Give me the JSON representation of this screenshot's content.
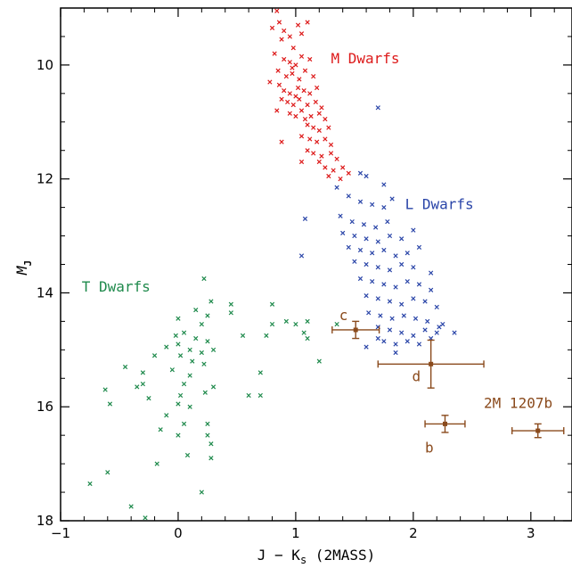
{
  "chart_data": {
    "type": "scatter",
    "xlabel": "J − K_s (2MASS)",
    "xlabel_main": "J − K",
    "xlabel_sub": "s",
    "xlabel_tail": " (2MASS)",
    "ylabel": "M_J",
    "ylabel_main": "M",
    "ylabel_sub": "J",
    "xlim": [
      -1,
      3.35
    ],
    "ylim": [
      18,
      9
    ],
    "y_inverted": true,
    "grid": false,
    "x_ticks": [
      {
        "value": -1,
        "label": "−1"
      },
      {
        "value": 0,
        "label": "0"
      },
      {
        "value": 1,
        "label": "1"
      },
      {
        "value": 2,
        "label": "2"
      },
      {
        "value": 3,
        "label": "3"
      }
    ],
    "y_ticks": [
      {
        "value": 10,
        "label": "10"
      },
      {
        "value": 12,
        "label": "12"
      },
      {
        "value": 14,
        "label": "14"
      },
      {
        "value": 16,
        "label": "16"
      },
      {
        "value": 18,
        "label": "18"
      }
    ],
    "colors": {
      "m": "#dd1a1a",
      "l": "#2a45a8",
      "t": "#1f8a4c",
      "obj": "#8a4a1c"
    },
    "series": [
      {
        "name": "M Dwarfs",
        "label_pos": [
          1.3,
          9.97
        ],
        "points": [
          [
            0.84,
            9.05
          ],
          [
            0.86,
            9.25
          ],
          [
            0.8,
            9.35
          ],
          [
            0.9,
            9.4
          ],
          [
            0.95,
            9.5
          ],
          [
            1.02,
            9.3
          ],
          [
            1.05,
            9.45
          ],
          [
            1.1,
            9.25
          ],
          [
            0.88,
            9.55
          ],
          [
            0.98,
            9.7
          ],
          [
            0.82,
            9.8
          ],
          [
            0.9,
            9.9
          ],
          [
            0.95,
            9.95
          ],
          [
            1.0,
            10.0
          ],
          [
            1.05,
            9.85
          ],
          [
            1.12,
            9.9
          ],
          [
            0.85,
            10.1
          ],
          [
            0.92,
            10.2
          ],
          [
            0.97,
            10.15
          ],
          [
            1.03,
            10.25
          ],
          [
            1.08,
            10.1
          ],
          [
            1.15,
            10.2
          ],
          [
            0.78,
            10.3
          ],
          [
            0.86,
            10.35
          ],
          [
            0.9,
            10.45
          ],
          [
            0.95,
            10.5
          ],
          [
            1.0,
            10.55
          ],
          [
            1.02,
            10.4
          ],
          [
            1.07,
            10.45
          ],
          [
            1.12,
            10.5
          ],
          [
            1.18,
            10.4
          ],
          [
            0.88,
            10.6
          ],
          [
            0.93,
            10.65
          ],
          [
            0.98,
            10.7
          ],
          [
            1.03,
            10.6
          ],
          [
            1.1,
            10.7
          ],
          [
            1.17,
            10.65
          ],
          [
            1.22,
            10.75
          ],
          [
            0.84,
            10.8
          ],
          [
            0.95,
            10.85
          ],
          [
            1.0,
            10.9
          ],
          [
            1.05,
            10.8
          ],
          [
            1.08,
            10.95
          ],
          [
            1.13,
            10.9
          ],
          [
            1.2,
            10.85
          ],
          [
            1.25,
            10.95
          ],
          [
            1.1,
            11.05
          ],
          [
            1.15,
            11.1
          ],
          [
            1.2,
            11.15
          ],
          [
            1.28,
            11.1
          ],
          [
            1.05,
            11.25
          ],
          [
            1.12,
            11.3
          ],
          [
            1.18,
            11.35
          ],
          [
            1.25,
            11.3
          ],
          [
            1.3,
            11.4
          ],
          [
            0.88,
            11.35
          ],
          [
            1.1,
            11.5
          ],
          [
            1.15,
            11.55
          ],
          [
            1.22,
            11.6
          ],
          [
            1.3,
            11.55
          ],
          [
            1.35,
            11.65
          ],
          [
            1.2,
            11.7
          ],
          [
            1.25,
            11.8
          ],
          [
            1.32,
            11.85
          ],
          [
            1.4,
            11.8
          ],
          [
            1.05,
            11.7
          ],
          [
            1.28,
            11.95
          ],
          [
            1.38,
            12.0
          ],
          [
            1.45,
            11.9
          ],
          [
            0.97,
            10.05
          ]
        ]
      },
      {
        "name": "L Dwarfs",
        "label_pos": [
          1.93,
          12.53
        ],
        "points": [
          [
            1.7,
            10.75
          ],
          [
            1.55,
            11.9
          ],
          [
            1.6,
            11.95
          ],
          [
            1.75,
            12.1
          ],
          [
            1.35,
            12.15
          ],
          [
            1.45,
            12.3
          ],
          [
            1.55,
            12.4
          ],
          [
            1.65,
            12.45
          ],
          [
            1.75,
            12.5
          ],
          [
            1.82,
            12.35
          ],
          [
            1.08,
            12.7
          ],
          [
            1.38,
            12.65
          ],
          [
            1.48,
            12.75
          ],
          [
            1.58,
            12.8
          ],
          [
            1.68,
            12.85
          ],
          [
            1.78,
            12.75
          ],
          [
            1.4,
            12.95
          ],
          [
            1.5,
            13.0
          ],
          [
            1.6,
            13.05
          ],
          [
            1.7,
            13.1
          ],
          [
            1.8,
            13.0
          ],
          [
            1.9,
            13.05
          ],
          [
            2.0,
            12.9
          ],
          [
            1.45,
            13.2
          ],
          [
            1.55,
            13.25
          ],
          [
            1.65,
            13.3
          ],
          [
            1.75,
            13.25
          ],
          [
            1.85,
            13.35
          ],
          [
            1.95,
            13.3
          ],
          [
            2.05,
            13.2
          ],
          [
            1.05,
            13.35
          ],
          [
            1.5,
            13.45
          ],
          [
            1.6,
            13.5
          ],
          [
            1.7,
            13.55
          ],
          [
            1.8,
            13.6
          ],
          [
            1.9,
            13.5
          ],
          [
            2.0,
            13.55
          ],
          [
            2.15,
            13.65
          ],
          [
            1.55,
            13.75
          ],
          [
            1.65,
            13.8
          ],
          [
            1.75,
            13.85
          ],
          [
            1.85,
            13.9
          ],
          [
            1.95,
            13.8
          ],
          [
            2.05,
            13.85
          ],
          [
            2.15,
            13.95
          ],
          [
            1.6,
            14.05
          ],
          [
            1.7,
            14.1
          ],
          [
            1.8,
            14.15
          ],
          [
            1.9,
            14.2
          ],
          [
            2.0,
            14.1
          ],
          [
            2.1,
            14.15
          ],
          [
            2.2,
            14.25
          ],
          [
            1.62,
            14.35
          ],
          [
            1.72,
            14.4
          ],
          [
            1.82,
            14.45
          ],
          [
            1.92,
            14.4
          ],
          [
            2.02,
            14.45
          ],
          [
            2.12,
            14.5
          ],
          [
            2.25,
            14.55
          ],
          [
            1.7,
            14.6
          ],
          [
            1.8,
            14.65
          ],
          [
            1.9,
            14.7
          ],
          [
            2.0,
            14.75
          ],
          [
            2.1,
            14.65
          ],
          [
            2.2,
            14.7
          ],
          [
            1.75,
            14.85
          ],
          [
            1.85,
            14.9
          ],
          [
            1.95,
            14.85
          ],
          [
            2.05,
            14.9
          ],
          [
            2.15,
            14.8
          ],
          [
            2.35,
            14.7
          ],
          [
            1.6,
            14.95
          ],
          [
            1.7,
            14.8
          ],
          [
            1.85,
            15.05
          ],
          [
            2.22,
            14.6
          ]
        ]
      },
      {
        "name": "T Dwarfs",
        "label_pos": [
          -0.82,
          13.98
        ],
        "points": [
          [
            0.22,
            13.75
          ],
          [
            0.8,
            14.2
          ],
          [
            0.28,
            14.15
          ],
          [
            0.15,
            14.3
          ],
          [
            0.45,
            14.2
          ],
          [
            0.25,
            14.4
          ],
          [
            0.0,
            14.45
          ],
          [
            0.2,
            14.55
          ],
          [
            0.45,
            14.35
          ],
          [
            0.8,
            14.55
          ],
          [
            0.92,
            14.5
          ],
          [
            1.0,
            14.55
          ],
          [
            1.07,
            14.7
          ],
          [
            1.1,
            14.5
          ],
          [
            1.35,
            14.55
          ],
          [
            -0.02,
            14.75
          ],
          [
            0.05,
            14.7
          ],
          [
            0.15,
            14.8
          ],
          [
            0.25,
            14.85
          ],
          [
            0.55,
            14.75
          ],
          [
            0.75,
            14.75
          ],
          [
            1.1,
            14.8
          ],
          [
            -0.1,
            14.95
          ],
          [
            0.0,
            14.9
          ],
          [
            0.1,
            15.0
          ],
          [
            0.2,
            15.05
          ],
          [
            0.3,
            15.0
          ],
          [
            0.02,
            15.1
          ],
          [
            0.12,
            15.2
          ],
          [
            0.22,
            15.25
          ],
          [
            1.2,
            15.2
          ],
          [
            -0.2,
            15.1
          ],
          [
            -0.45,
            15.3
          ],
          [
            -0.3,
            15.4
          ],
          [
            -0.05,
            15.35
          ],
          [
            0.1,
            15.45
          ],
          [
            0.7,
            15.4
          ],
          [
            -0.3,
            15.6
          ],
          [
            0.05,
            15.6
          ],
          [
            0.3,
            15.65
          ],
          [
            -0.62,
            15.7
          ],
          [
            -0.58,
            15.95
          ],
          [
            -0.25,
            15.85
          ],
          [
            0.02,
            15.8
          ],
          [
            0.23,
            15.75
          ],
          [
            0.6,
            15.8
          ],
          [
            0.7,
            15.8
          ],
          [
            0.1,
            16.0
          ],
          [
            -0.1,
            16.15
          ],
          [
            0.25,
            16.3
          ],
          [
            0.05,
            16.3
          ],
          [
            -0.15,
            16.4
          ],
          [
            0.25,
            16.5
          ],
          [
            0.0,
            16.5
          ],
          [
            0.28,
            16.65
          ],
          [
            0.08,
            16.85
          ],
          [
            0.28,
            16.9
          ],
          [
            -0.18,
            17.0
          ],
          [
            -0.6,
            17.15
          ],
          [
            0.2,
            17.5
          ],
          [
            -0.75,
            17.35
          ],
          [
            -0.4,
            17.75
          ],
          [
            -0.28,
            17.95
          ],
          [
            0.0,
            15.95
          ],
          [
            -0.35,
            15.65
          ]
        ]
      }
    ],
    "objects": [
      {
        "name": "c",
        "x": 1.51,
        "y": 14.65,
        "xerr": 0.2,
        "yerr": 0.15,
        "label_pos": [
          1.37,
          14.48
        ]
      },
      {
        "name": "d",
        "x": 2.15,
        "y": 15.25,
        "xerr": 0.45,
        "yerr": 0.42,
        "label_pos": [
          1.99,
          15.55
        ]
      },
      {
        "name": "b",
        "x": 2.27,
        "y": 16.3,
        "xerr": 0.17,
        "yerr": 0.15,
        "label_pos": [
          2.1,
          16.8
        ]
      },
      {
        "name": "2M 1207b",
        "x": 3.06,
        "y": 16.42,
        "xerr": 0.22,
        "yerr": 0.12,
        "label_pos": [
          2.6,
          16.02
        ]
      }
    ]
  }
}
